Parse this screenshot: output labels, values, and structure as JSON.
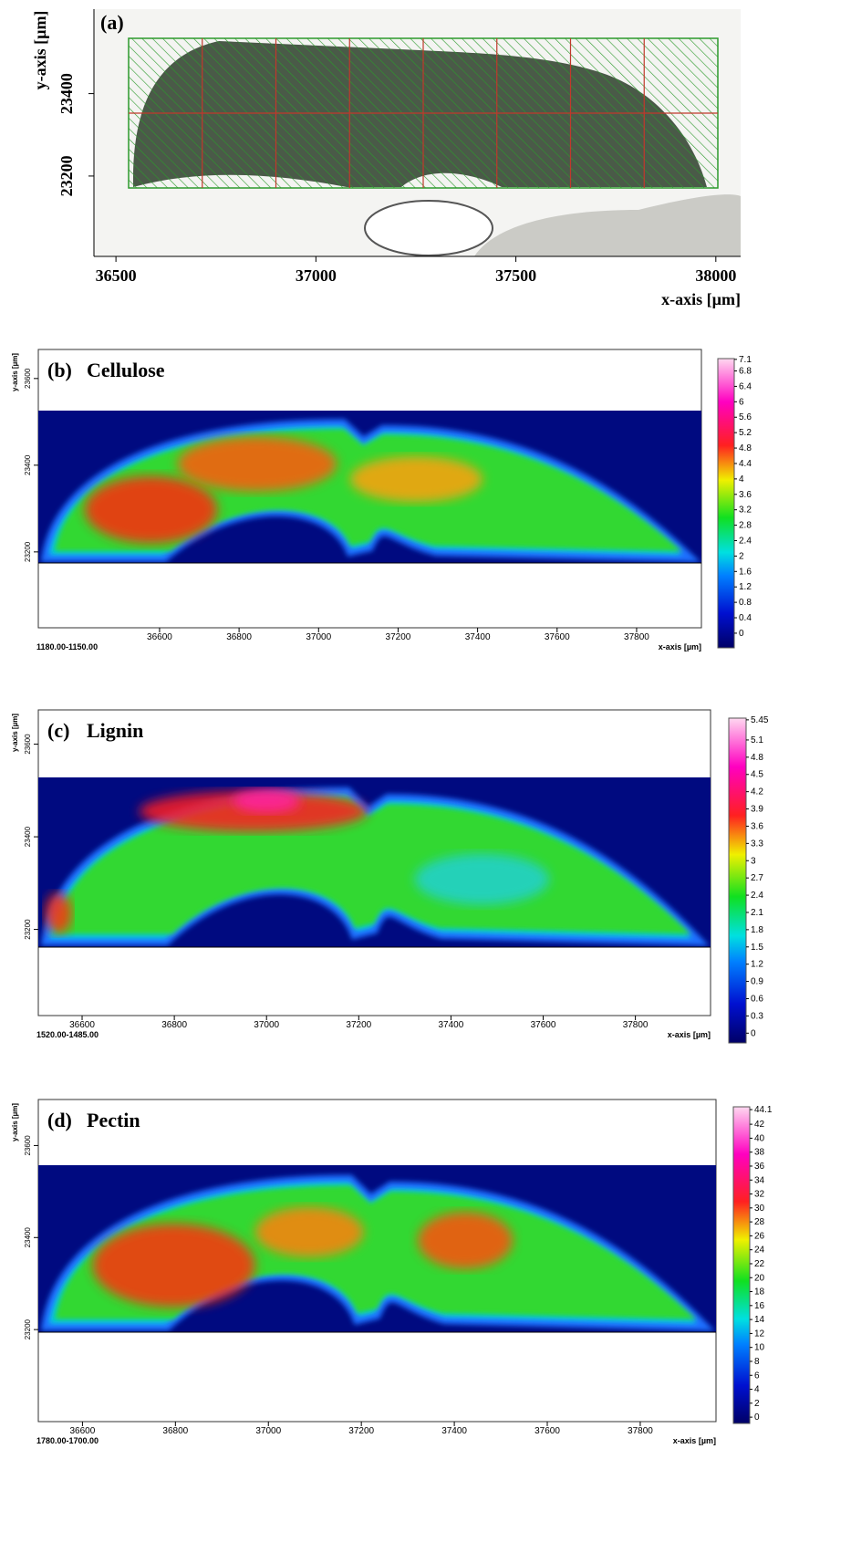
{
  "chart_data": [
    {
      "type": "image",
      "label": "(a)",
      "x_label": "x-axis [µm]",
      "y_label": "y-axis [µm]",
      "xlim": [
        36445,
        38062
      ],
      "ylim": [
        23005,
        23605
      ],
      "xticks": [
        36500,
        37000,
        37500,
        38000
      ],
      "yticks": [
        23200,
        23400
      ]
    },
    {
      "type": "heatmap",
      "label": "(b)",
      "title": "Cellulose",
      "range_label": "1180.00-1150.00",
      "x_label": "x-axis [µm]",
      "y_label": "y-axis [µm]",
      "xlim": [
        36295,
        37963
      ],
      "ylim": [
        23025,
        23667
      ],
      "xticks": [
        36600,
        36800,
        37000,
        37200,
        37400,
        37600,
        37800
      ],
      "yticks": [
        23200,
        23400,
        23600
      ],
      "clim": [
        -0.38,
        7.12
      ],
      "cticks": [
        0,
        0.4,
        0.8,
        1.2,
        1.6,
        2,
        2.4,
        2.8,
        3.2,
        3.6,
        4,
        4.4,
        4.8,
        5.2,
        5.6,
        6,
        6.4,
        6.8,
        7.1
      ]
    },
    {
      "type": "heatmap",
      "label": "(c)",
      "title": "Lignin",
      "range_label": "1520.00-1485.00",
      "x_label": "x-axis [µm]",
      "y_label": "y-axis [µm]",
      "xlim": [
        36505,
        37963
      ],
      "ylim": [
        23014,
        23674
      ],
      "xticks": [
        36600,
        36800,
        37000,
        37200,
        37400,
        37600,
        37800
      ],
      "yticks": [
        23200,
        23400,
        23600
      ],
      "clim": [
        -0.17,
        5.48
      ],
      "cticks": [
        0,
        0.3,
        0.6,
        0.9,
        1.2,
        1.5,
        1.8,
        2.1,
        2.4,
        2.7,
        3,
        3.3,
        3.6,
        3.9,
        4.2,
        4.5,
        4.8,
        5.1,
        5.45
      ]
    },
    {
      "type": "heatmap",
      "label": "(d)",
      "title": "Pectin",
      "range_label": "1780.00-1700.00",
      "x_label": "x-axis [µm]",
      "y_label": "y-axis [µm]",
      "xlim": [
        36505,
        37963
      ],
      "ylim": [
        23000,
        23700
      ],
      "xticks": [
        36600,
        36800,
        37000,
        37200,
        37400,
        37600,
        37800
      ],
      "yticks": [
        23200,
        23400,
        23600
      ],
      "clim": [
        -0.9,
        44.5
      ],
      "cticks": [
        0,
        2,
        4,
        6,
        8,
        10,
        12,
        14,
        16,
        18,
        20,
        22,
        24,
        26,
        28,
        30,
        32,
        34,
        36,
        38,
        40,
        42,
        44.1
      ]
    }
  ]
}
